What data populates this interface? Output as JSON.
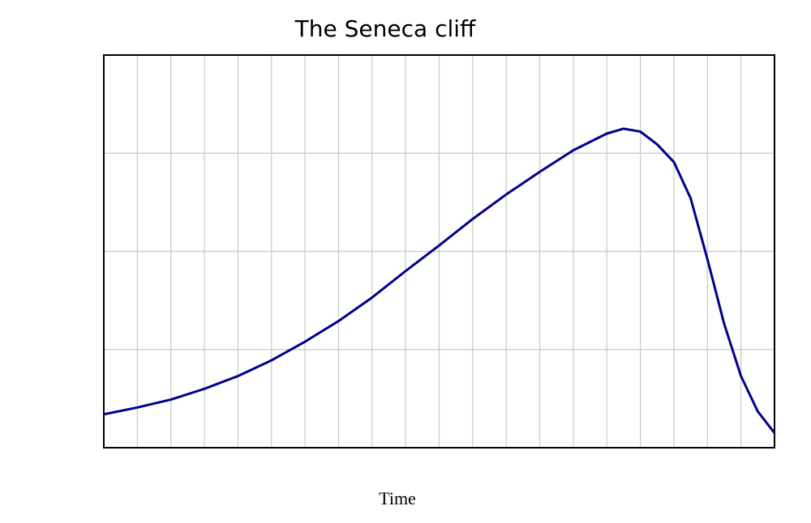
{
  "chart_data": {
    "type": "line",
    "title": "The Seneca cliff",
    "x_label": "Time",
    "x": [
      0,
      1,
      2,
      3,
      4,
      5,
      6,
      7,
      8,
      9,
      10,
      11,
      12,
      13,
      14,
      15,
      15.5,
      16,
      16.5,
      17,
      17.5,
      18,
      18.5,
      19,
      19.5,
      20
    ],
    "series": [
      {
        "color": "#00008b",
        "values": [
          0.34,
          0.41,
          0.49,
          0.6,
          0.73,
          0.89,
          1.08,
          1.29,
          1.53,
          1.8,
          2.06,
          2.33,
          2.58,
          2.81,
          3.03,
          3.2,
          3.25,
          3.22,
          3.09,
          2.91,
          2.54,
          1.92,
          1.26,
          0.73,
          0.37,
          0.15
        ]
      }
    ],
    "xlim": [
      0,
      20
    ],
    "ylim": [
      0,
      4
    ],
    "xticks": [
      0,
      1,
      2,
      3,
      4,
      5,
      6,
      7,
      8,
      9,
      10,
      11,
      12,
      13,
      14,
      15,
      16,
      17,
      18,
      19,
      20
    ],
    "yticks": [
      0,
      1,
      2,
      3,
      4
    ],
    "grid": true
  }
}
